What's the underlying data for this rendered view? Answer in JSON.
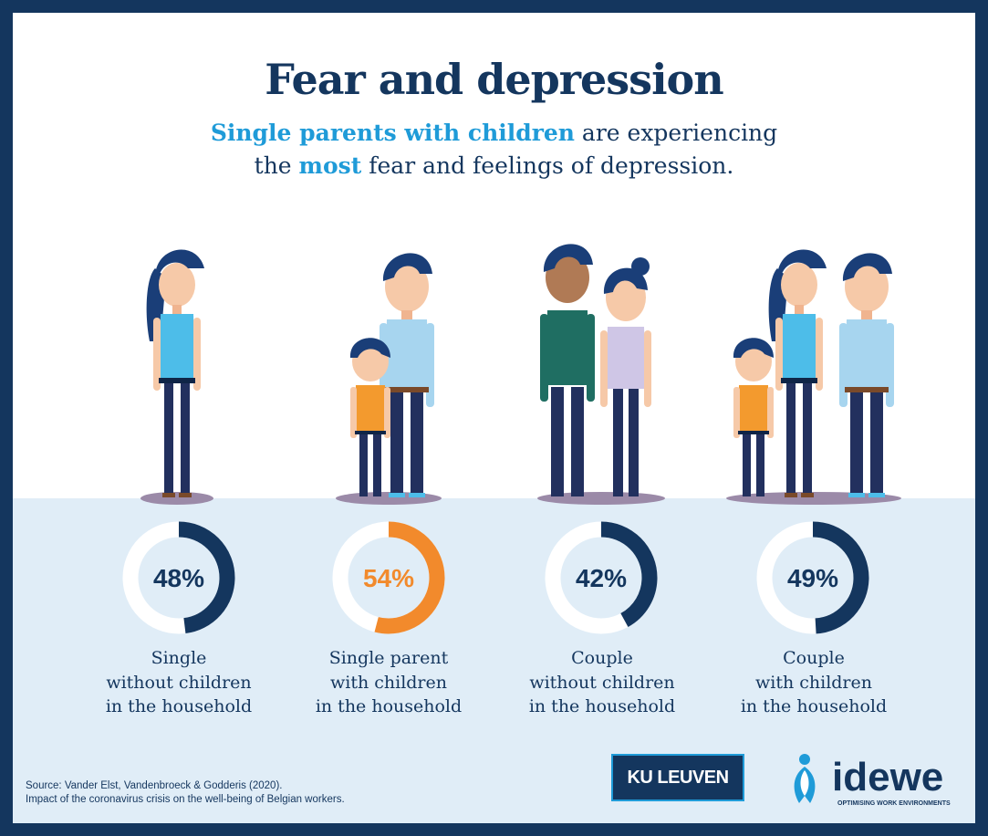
{
  "header": {
    "title": "Fear and depression",
    "subtitle_part1": "Single parents with children",
    "subtitle_part2": " are experiencing",
    "subtitle_part3": "the ",
    "subtitle_part4": "most",
    "subtitle_part5": " fear and feelings of depression."
  },
  "chart_data": {
    "type": "donut",
    "title": "Fear and depression",
    "categories": [
      [
        "Single",
        "without children",
        "in the household"
      ],
      [
        "Single parent",
        "with children",
        "in the household"
      ],
      [
        "Couple",
        "without children",
        "in the household"
      ],
      [
        "Couple",
        "with children",
        "in the household"
      ]
    ],
    "values": [
      48,
      54,
      42,
      49
    ],
    "value_labels": [
      "48%",
      "54%",
      "42%",
      "49%"
    ],
    "highlight_index": 1,
    "unit": "%"
  },
  "footer": {
    "source_line1": "Source: Vander Elst, Vandenbroeck & Godderis (2020).",
    "source_line2": "Impact of the coronavirus crisis on the well-being of Belgian workers.",
    "ku_leuven": "KU LEUVEN",
    "idewe_name": "idewe",
    "idewe_tagline": "OPTIMISING WORK ENVIRONMENTS"
  },
  "colors": {
    "navy": "#14365e",
    "highlight": "#f28a2c",
    "accent_blue": "#1f9bd8",
    "ring_bg": "#ffffff",
    "band": "#e0edf7"
  },
  "icons": [
    "woman-figure",
    "man-figure",
    "child-figure",
    "idewe-person-icon"
  ]
}
